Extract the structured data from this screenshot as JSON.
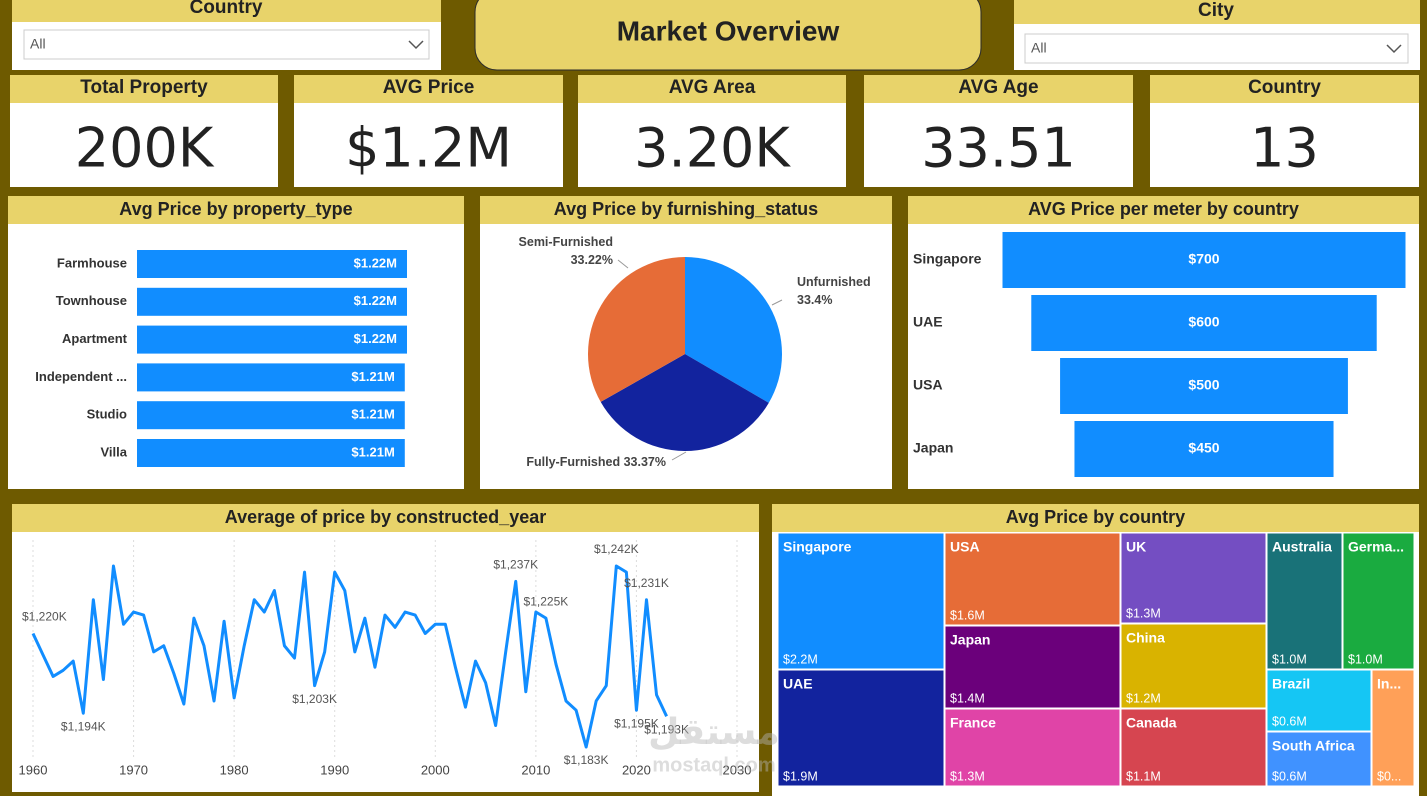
{
  "header": {
    "title": "Market Overview"
  },
  "slicers": [
    {
      "label": "Country",
      "value": "All"
    },
    {
      "label": "City",
      "value": "All"
    }
  ],
  "kpis": [
    {
      "label": "Total Property",
      "value": "200K"
    },
    {
      "label": "AVG Price",
      "value": "$1.2M"
    },
    {
      "label": "AVG Area",
      "value": "3.20K"
    },
    {
      "label": "AVG Age",
      "value": "33.51"
    },
    {
      "label": "Country",
      "value": "13"
    }
  ],
  "watermark": [
    "مستقل",
    "mostaql.com"
  ],
  "chart_data": [
    {
      "type": "bar",
      "title": "Avg Price by property_type",
      "color": "#118DFF",
      "categories": [
        "Farmhouse",
        "Townhouse",
        "Apartment",
        "Independent ...",
        "Studio",
        "Villa"
      ],
      "values": [
        1.22,
        1.22,
        1.22,
        1.21,
        1.21,
        1.21
      ],
      "value_labels": [
        "$1.22M",
        "$1.22M",
        "$1.22M",
        "$1.21M",
        "$1.21M",
        "$1.21M"
      ]
    },
    {
      "type": "pie",
      "title": "Avg Price by furnishing_status",
      "categories": [
        "Unfurnished",
        "Fully-Furnished",
        "Semi-Furnished"
      ],
      "values": [
        33.4,
        33.37,
        33.22
      ],
      "value_labels": [
        "33.4%",
        "33.37%",
        "33.22%"
      ],
      "colors": [
        "#118DFF",
        "#12239E",
        "#E66C37"
      ]
    },
    {
      "type": "funnel",
      "title": "AVG Price per meter by country",
      "color": "#118DFF",
      "categories": [
        "Singapore",
        "UAE",
        "USA",
        "Japan"
      ],
      "values": [
        700,
        600,
        500,
        450
      ],
      "value_labels": [
        "$700",
        "$600",
        "$500",
        "$450"
      ]
    },
    {
      "type": "line",
      "title": "Average of price by constructed_year",
      "color": "#118DFF",
      "x": [
        1960,
        1961,
        1962,
        1963,
        1964,
        1965,
        1966,
        1967,
        1968,
        1969,
        1970,
        1971,
        1972,
        1973,
        1974,
        1975,
        1976,
        1977,
        1978,
        1979,
        1980,
        1981,
        1982,
        1983,
        1984,
        1985,
        1986,
        1987,
        1988,
        1989,
        1990,
        1991,
        1992,
        1993,
        1994,
        1995,
        1996,
        1997,
        1998,
        1999,
        2000,
        2001,
        2002,
        2003,
        2004,
        2005,
        2006,
        2007,
        2008,
        2009,
        2010,
        2011,
        2012,
        2013,
        2014,
        2015,
        2016,
        2017,
        2018,
        2019,
        2020,
        2021,
        2022,
        2023
      ],
      "values": [
        1220,
        1213,
        1206,
        1208,
        1211,
        1194,
        1231,
        1205,
        1242,
        1223,
        1227,
        1226,
        1214,
        1216,
        1207,
        1197,
        1225,
        1216,
        1198,
        1224,
        1199,
        1216,
        1231,
        1227,
        1234,
        1216,
        1212,
        1240,
        1203,
        1214,
        1240,
        1234,
        1214,
        1225,
        1209,
        1226,
        1222,
        1227,
        1226,
        1220,
        1223,
        1223,
        1209,
        1196,
        1211,
        1204,
        1190,
        1214,
        1237,
        1201,
        1227,
        1225,
        1210,
        1198,
        1195,
        1183,
        1198,
        1203,
        1242,
        1240,
        1195,
        1231,
        1200,
        1193
      ],
      "value_labels": [
        "$1,220K",
        null,
        null,
        null,
        null,
        "$1,194K",
        null,
        null,
        null,
        null,
        null,
        null,
        null,
        null,
        null,
        null,
        null,
        null,
        null,
        null,
        null,
        null,
        null,
        null,
        null,
        null,
        null,
        null,
        "$1,203K",
        null,
        null,
        null,
        null,
        null,
        null,
        null,
        null,
        null,
        null,
        null,
        null,
        null,
        null,
        null,
        null,
        null,
        null,
        null,
        "$1,237K",
        null,
        null,
        "$1,225K",
        null,
        null,
        null,
        "$1,183K",
        null,
        null,
        "$1,242K",
        null,
        "$1,195K",
        "$1,231K",
        null,
        "$1,193K"
      ],
      "xlim": [
        1960,
        2030
      ],
      "xticks": [
        1960,
        1970,
        1980,
        1990,
        2000,
        2010,
        2020,
        2030
      ],
      "grid": true
    },
    {
      "type": "treemap",
      "title": "Avg Price by country",
      "categories": [
        "Singapore",
        "UAE",
        "USA",
        "Japan",
        "France",
        "UK",
        "China",
        "Canada",
        "Australia",
        "Germa...",
        "Brazil",
        "South Africa",
        "In..."
      ],
      "values": [
        2.2,
        1.9,
        1.6,
        1.4,
        1.3,
        1.3,
        1.2,
        1.1,
        1.0,
        1.0,
        0.6,
        0.6,
        0.5
      ],
      "value_labels": [
        "$2.2M",
        "$1.9M",
        "$1.6M",
        "$1.4M",
        "$1.3M",
        "$1.3M",
        "$1.2M",
        "$1.1M",
        "$1.0M",
        "$1.0M",
        "$0.6M",
        "$0.6M",
        "$0..."
      ],
      "colors": [
        "#118DFF",
        "#12239E",
        "#E66C37",
        "#6B007B",
        "#E044A7",
        "#744EC2",
        "#D9B300",
        "#D64550",
        "#197278",
        "#1AAB40",
        "#15C6F4",
        "#4092FF",
        "#FFA058"
      ]
    }
  ]
}
